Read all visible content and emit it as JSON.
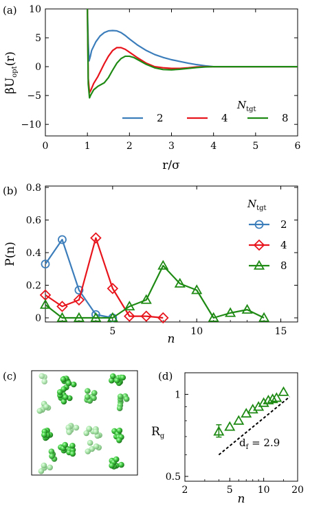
{
  "chart_data": [
    {
      "panel": "(a)",
      "type": "line",
      "xlabel": "r/σ",
      "ylabel": "βU_opt(r)",
      "xlim": [
        0,
        6
      ],
      "ylim": [
        -12,
        10
      ],
      "xticks": [
        "0",
        "1",
        "2",
        "3",
        "4",
        "5",
        "6"
      ],
      "yticks": [
        "10",
        "5",
        "0",
        "−5",
        "−10"
      ],
      "legend_title": "N_tgt",
      "legend_position": "lower-right",
      "grid": false,
      "series": [
        {
          "name": "2",
          "color": "#3b7dbb",
          "x": [
            1.0,
            1.02,
            1.04,
            1.07,
            1.1,
            1.2,
            1.3,
            1.4,
            1.5,
            1.6,
            1.7,
            1.8,
            1.9,
            2.0,
            2.2,
            2.4,
            2.6,
            2.8,
            3.0,
            3.2,
            3.4,
            3.6,
            3.8,
            4.0,
            4.5,
            5.0,
            5.5,
            6.0
          ],
          "y": [
            10,
            4.0,
            1.0,
            1.8,
            2.8,
            4.3,
            5.3,
            5.9,
            6.2,
            6.25,
            6.2,
            5.9,
            5.4,
            4.8,
            3.7,
            2.8,
            2.1,
            1.6,
            1.2,
            0.9,
            0.6,
            0.35,
            0.15,
            0.0,
            0.0,
            0.0,
            0.0,
            0.0
          ]
        },
        {
          "name": "4",
          "color": "#e8141c",
          "x": [
            1.0,
            1.02,
            1.05,
            1.08,
            1.15,
            1.25,
            1.4,
            1.5,
            1.6,
            1.7,
            1.8,
            1.9,
            2.0,
            2.2,
            2.4,
            2.6,
            2.8,
            3.0,
            3.2,
            3.4,
            3.6,
            3.8,
            4.0,
            4.5,
            5.0,
            5.5,
            6.0
          ],
          "y": [
            10,
            -2.0,
            -4.5,
            -4.1,
            -2.9,
            -1.7,
            0.5,
            1.8,
            2.8,
            3.3,
            3.3,
            3.0,
            2.5,
            1.5,
            0.6,
            0.0,
            -0.2,
            -0.3,
            -0.3,
            -0.2,
            -0.05,
            0.0,
            0.0,
            0.0,
            0.0,
            0.0,
            0.0
          ]
        },
        {
          "name": "8",
          "color": "#1e8a14",
          "x": [
            1.0,
            1.02,
            1.05,
            1.08,
            1.15,
            1.25,
            1.4,
            1.5,
            1.6,
            1.7,
            1.8,
            1.9,
            2.0,
            2.1,
            2.2,
            2.4,
            2.6,
            2.8,
            3.0,
            3.2,
            3.4,
            3.6,
            3.8,
            4.0,
            4.5,
            5.0,
            5.5,
            6.0
          ],
          "y": [
            10,
            -3.0,
            -5.4,
            -4.9,
            -4.0,
            -3.4,
            -2.8,
            -1.9,
            -0.6,
            0.6,
            1.4,
            1.8,
            1.8,
            1.6,
            1.2,
            0.4,
            -0.2,
            -0.5,
            -0.55,
            -0.45,
            -0.3,
            -0.15,
            -0.05,
            0.0,
            0.0,
            0.0,
            0.0,
            0.0
          ]
        }
      ]
    },
    {
      "panel": "(b)",
      "type": "line",
      "xlabel": "n",
      "ylabel": "P(n)",
      "xlim": [
        1,
        16
      ],
      "ylim": [
        0,
        0.8
      ],
      "xticks": [
        "5",
        "10",
        "15"
      ],
      "yticks": [
        "0",
        "0.2",
        "0.4",
        "0.6",
        "0.8"
      ],
      "legend_title": "N_tgt",
      "legend_position": "right",
      "grid": false,
      "series": [
        {
          "name": "2",
          "color": "#3b7dbb",
          "marker": "circle",
          "x": [
            1,
            2,
            3,
            4,
            5
          ],
          "y": [
            0.33,
            0.48,
            0.17,
            0.02,
            0.0
          ]
        },
        {
          "name": "4",
          "color": "#e8141c",
          "marker": "diamond",
          "x": [
            1,
            2,
            3,
            4,
            5,
            6,
            7,
            8
          ],
          "y": [
            0.14,
            0.07,
            0.11,
            0.49,
            0.18,
            0.01,
            0.01,
            0.0
          ]
        },
        {
          "name": "8",
          "color": "#1e8a14",
          "marker": "triangle",
          "x": [
            1,
            2,
            3,
            4,
            5,
            6,
            7,
            8,
            9,
            10,
            11,
            12,
            13,
            14
          ],
          "y": [
            0.08,
            0.0,
            0.0,
            0.0,
            0.0,
            0.07,
            0.11,
            0.32,
            0.21,
            0.17,
            0.0,
            0.03,
            0.05,
            0.0
          ]
        }
      ]
    },
    {
      "panel": "(c)",
      "type": "image",
      "description_hidden": true,
      "clusters": [
        {
          "cx": 0.12,
          "cy": 0.06,
          "n": 3,
          "shade": 0.4
        },
        {
          "cx": 0.34,
          "cy": 0.1,
          "n": 9,
          "shade": 0.9
        },
        {
          "cx": 0.82,
          "cy": 0.07,
          "n": 9,
          "shade": 0.9
        },
        {
          "cx": 0.3,
          "cy": 0.23,
          "n": 8,
          "shade": 0.9
        },
        {
          "cx": 0.57,
          "cy": 0.25,
          "n": 7,
          "shade": 0.7
        },
        {
          "cx": 0.84,
          "cy": 0.3,
          "n": 7,
          "shade": 0.7
        },
        {
          "cx": 0.12,
          "cy": 0.35,
          "n": 6,
          "shade": 0.6
        },
        {
          "cx": 0.58,
          "cy": 0.58,
          "n": 8,
          "shade": 0.6
        },
        {
          "cx": 0.8,
          "cy": 0.63,
          "n": 8,
          "shade": 0.9
        },
        {
          "cx": 0.14,
          "cy": 0.6,
          "n": 8,
          "shade": 0.9
        },
        {
          "cx": 0.37,
          "cy": 0.57,
          "n": 7,
          "shade": 0.5
        },
        {
          "cx": 0.34,
          "cy": 0.75,
          "n": 10,
          "shade": 0.9
        },
        {
          "cx": 0.57,
          "cy": 0.75,
          "n": 5,
          "shade": 0.6
        },
        {
          "cx": 0.8,
          "cy": 0.91,
          "n": 7,
          "shade": 0.9
        },
        {
          "cx": 0.12,
          "cy": 0.93,
          "n": 4,
          "shade": 0.6
        },
        {
          "cx": 0.2,
          "cy": 0.8,
          "n": 4,
          "shade": 0.8
        }
      ]
    },
    {
      "panel": "(d)",
      "type": "scatter",
      "xlabel": "n",
      "ylabel": "R_g",
      "xscale": "log",
      "yscale": "log",
      "xlim": [
        2,
        20
      ],
      "ylim": [
        0.48,
        1.2
      ],
      "xticks": [
        "2",
        "5",
        "10",
        "20"
      ],
      "yticks": [
        "1",
        "0.5"
      ],
      "annotation": "d_f = 2.9",
      "fit_line": {
        "x": [
          4,
          17
        ],
        "y": [
          0.6,
          0.98
        ]
      },
      "series": [
        {
          "name": "",
          "color": "#1e8a14",
          "marker": "triangle",
          "x": [
            4,
            5,
            6,
            7,
            8,
            9,
            10,
            11,
            12,
            13,
            15
          ],
          "y": [
            0.73,
            0.76,
            0.8,
            0.85,
            0.88,
            0.9,
            0.93,
            0.95,
            0.96,
            0.97,
            1.02
          ]
        }
      ]
    }
  ]
}
